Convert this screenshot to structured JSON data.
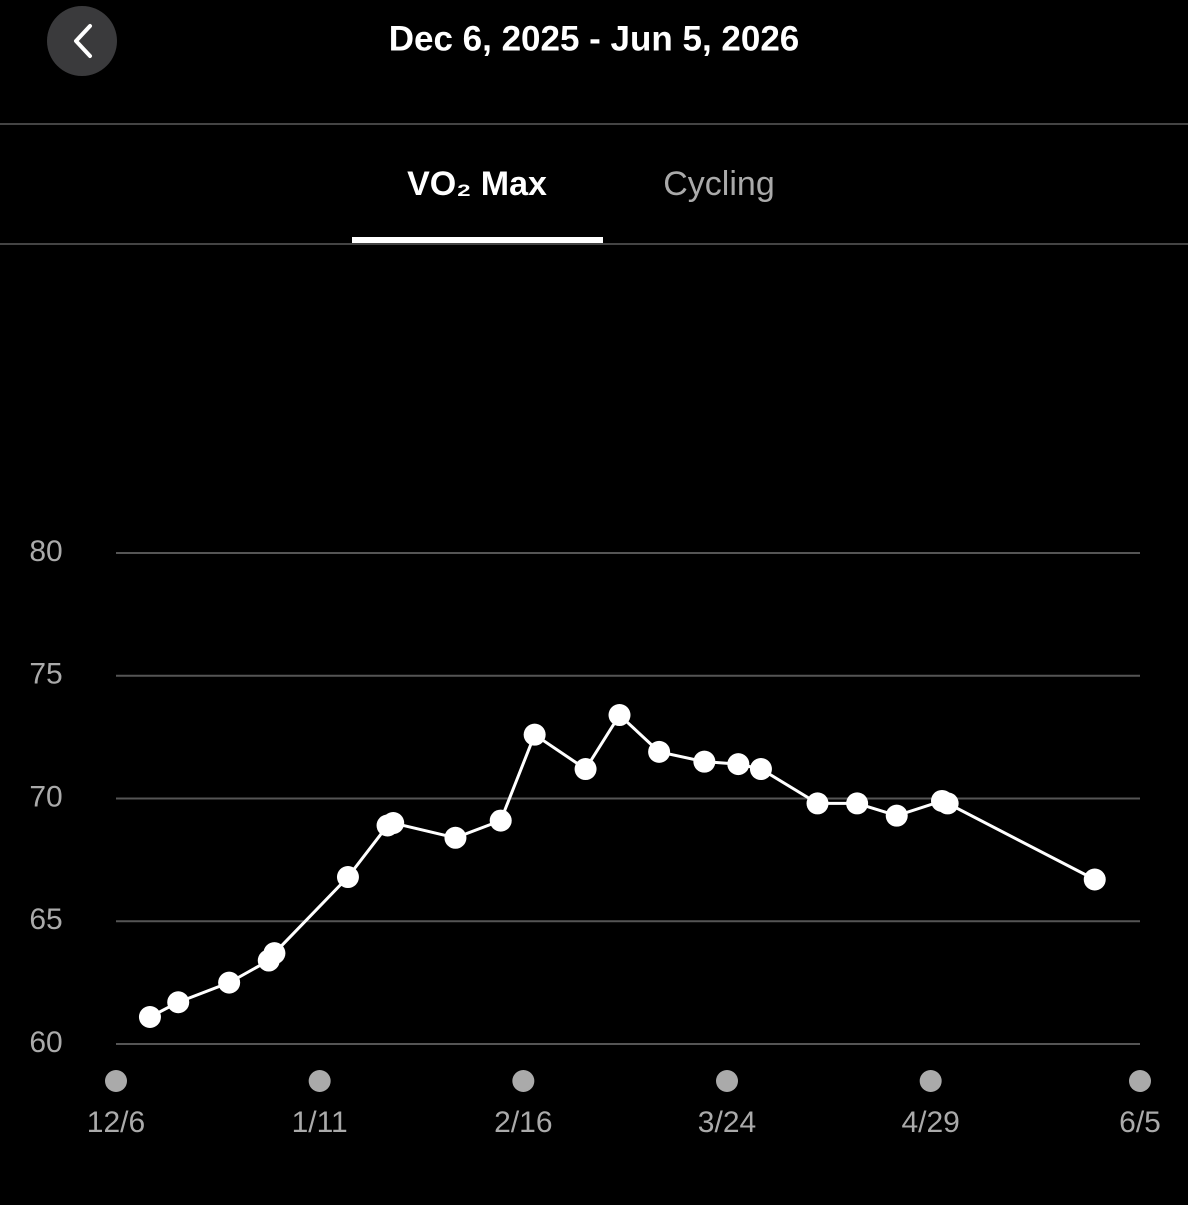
{
  "header": {
    "title": "Dec 6, 2025 - Jun 5, 2026"
  },
  "tabs": [
    "VO₂ Max",
    "Cycling"
  ],
  "chart_data": {
    "type": "line",
    "x": [
      6,
      11,
      20,
      27,
      28,
      41,
      48,
      49,
      60,
      68,
      74,
      83,
      89,
      96,
      104,
      110,
      114,
      124,
      131,
      138,
      146,
      147,
      173
    ],
    "series": [
      {
        "color": "#ffffff",
        "values": [
          61.1,
          61.7,
          62.5,
          63.4,
          63.7,
          66.8,
          68.9,
          69.0,
          68.4,
          69.1,
          72.6,
          71.2,
          73.4,
          71.9,
          71.5,
          71.4,
          71.2,
          69.8,
          69.8,
          69.3,
          69.9,
          69.8,
          66.7
        ]
      }
    ],
    "xlim": [
      0,
      181
    ],
    "xticks": [
      {
        "value": 0,
        "label": "12/6"
      },
      {
        "value": 36,
        "label": "1/11"
      },
      {
        "value": 72,
        "label": "2/16"
      },
      {
        "value": 108,
        "label": "3/24"
      },
      {
        "value": 144,
        "label": "4/29"
      },
      {
        "value": 181,
        "label": "6/5"
      }
    ],
    "ylim": [
      60,
      80
    ],
    "yticks": [
      60,
      65,
      70,
      75,
      80
    ],
    "grid": true
  }
}
